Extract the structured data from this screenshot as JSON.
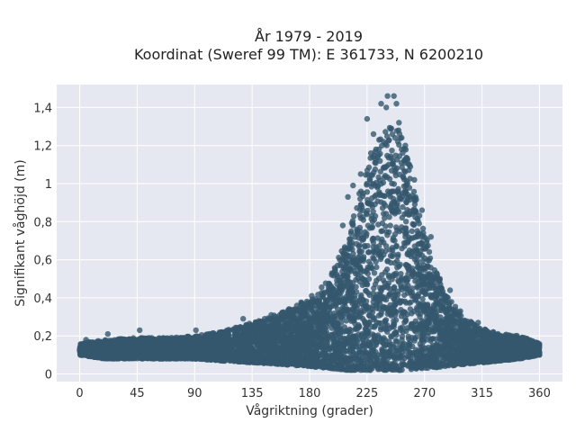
{
  "chart_data": {
    "type": "scatter",
    "title": [
      "År 1979 - 2019",
      "Koordinat (Sweref 99 TM): E 361733, N 6200210"
    ],
    "xlabel": "Vågriktning (grader)",
    "ylabel": "Signifikant våghöjd (m)",
    "xlim": [
      -18,
      378
    ],
    "ylim": [
      -0.04,
      1.52
    ],
    "xticks": [
      0,
      45,
      90,
      135,
      180,
      225,
      270,
      315,
      360
    ],
    "xtick_labels": [
      "0",
      "45",
      "90",
      "135",
      "180",
      "225",
      "270",
      "315",
      "360"
    ],
    "yticks": [
      0,
      0.2,
      0.4,
      0.6,
      0.8,
      1.0,
      1.2,
      1.4
    ],
    "ytick_labels": [
      "0",
      "0,2",
      "0,4",
      "0,6",
      "0,8",
      "1",
      "1,2",
      "1,4"
    ],
    "grid": true,
    "colors": {
      "marker": "#34586e",
      "plot_bg": "#e5e8f0",
      "grid": "#ffffff"
    },
    "envelope": {
      "direction": [
        0,
        20,
        45,
        70,
        90,
        110,
        135,
        160,
        180,
        195,
        210,
        220,
        230,
        240,
        250,
        258,
        265,
        275,
        285,
        300,
        315,
        330,
        345,
        360
      ],
      "upper": [
        0.16,
        0.18,
        0.19,
        0.19,
        0.2,
        0.22,
        0.27,
        0.33,
        0.4,
        0.5,
        0.72,
        0.98,
        1.2,
        1.3,
        1.3,
        1.12,
        0.9,
        0.62,
        0.44,
        0.3,
        0.24,
        0.21,
        0.2,
        0.16
      ],
      "lower": [
        0.1,
        0.08,
        0.08,
        0.08,
        0.08,
        0.07,
        0.06,
        0.05,
        0.04,
        0.03,
        0.02,
        0.02,
        0.02,
        0.02,
        0.02,
        0.02,
        0.03,
        0.03,
        0.04,
        0.05,
        0.06,
        0.07,
        0.08,
        0.1
      ]
    },
    "outliers": {
      "x": [
        5,
        22,
        47,
        60,
        91,
        128,
        150,
        168,
        186,
        200,
        206,
        210,
        214,
        220,
        225,
        228,
        230,
        232,
        234,
        236,
        238,
        240,
        241,
        242,
        244,
        246,
        247,
        248,
        250,
        252,
        255,
        258,
        262,
        268,
        275,
        282,
        290,
        298,
        312,
        330,
        345
      ],
      "y": [
        0.18,
        0.21,
        0.23,
        0.16,
        0.23,
        0.29,
        0.31,
        0.34,
        0.38,
        0.55,
        0.78,
        0.93,
        0.99,
        1.05,
        1.34,
        1.16,
        1.26,
        1.18,
        1.15,
        1.42,
        1.22,
        1.4,
        1.46,
        1.1,
        1.29,
        1.46,
        1.24,
        1.42,
        1.32,
        1.18,
        1.2,
        1.1,
        1.02,
        0.86,
        0.72,
        0.5,
        0.44,
        0.33,
        0.27,
        0.2,
        0.17
      ]
    }
  }
}
